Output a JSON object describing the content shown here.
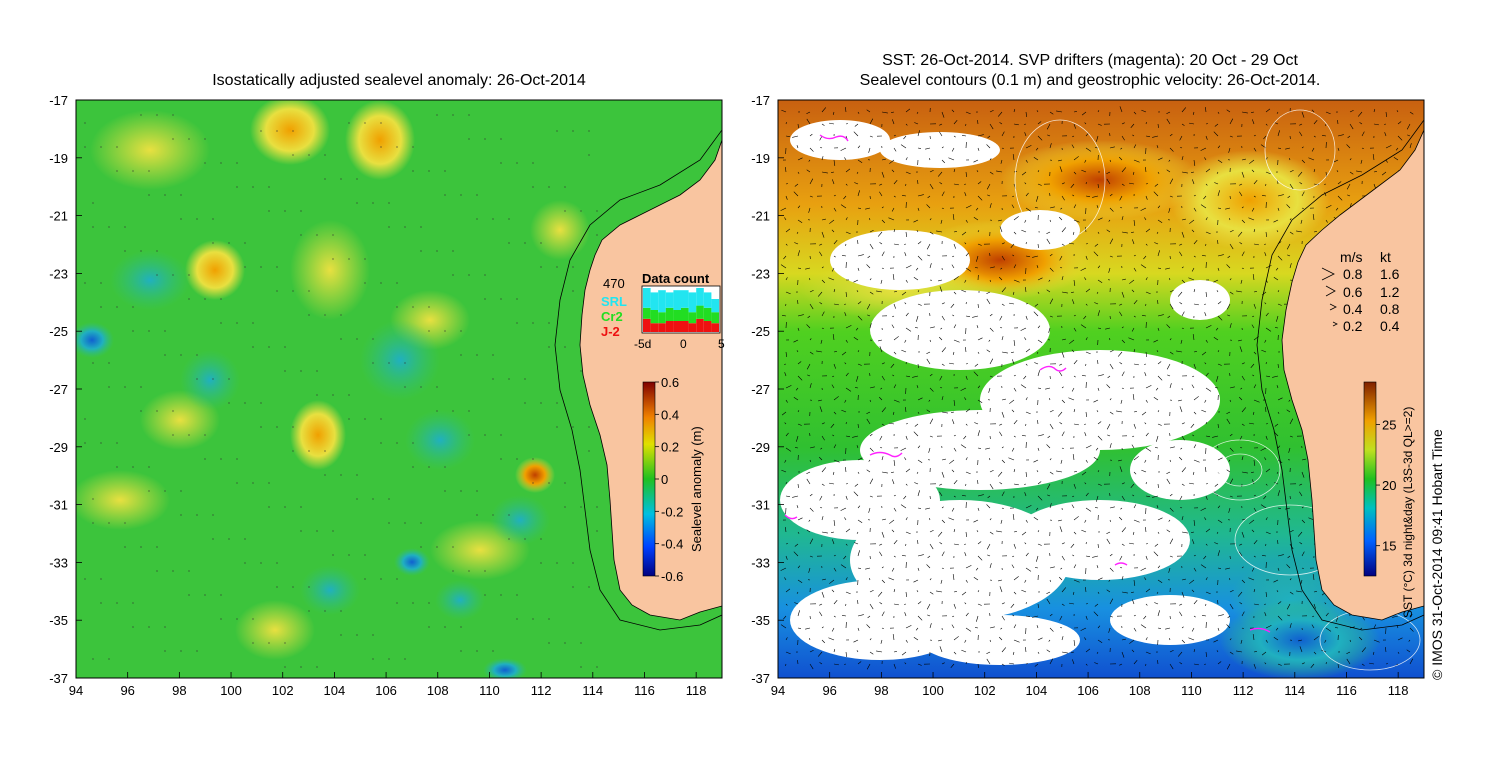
{
  "left_panel": {
    "title": "Isostatically adjusted sealevel anomaly: 26-Oct-2014",
    "x_ticks": [
      "94",
      "96",
      "98",
      "100",
      "102",
      "104",
      "106",
      "108",
      "110",
      "112",
      "114",
      "116",
      "118"
    ],
    "y_ticks": [
      "-17",
      "-19",
      "-21",
      "-23",
      "-25",
      "-27",
      "-29",
      "-31",
      "-33",
      "-35",
      "-37"
    ],
    "lon_range": [
      94,
      119
    ],
    "lat_range": [
      -37,
      -17
    ],
    "data_count": {
      "count": "470",
      "title": "Data count",
      "legend": [
        {
          "name": "SRL",
          "color": "#22e5f0"
        },
        {
          "name": "Cr2",
          "color": "#22dd22"
        },
        {
          "name": "J-2",
          "color": "#ee1111"
        }
      ],
      "axis_ticks": [
        "-5d",
        "0",
        "5"
      ],
      "bars": [
        {
          "srl": 0.45,
          "cr2": 0.25,
          "j2": 0.3
        },
        {
          "srl": 0.4,
          "cr2": 0.3,
          "j2": 0.2
        },
        {
          "srl": 0.5,
          "cr2": 0.25,
          "j2": 0.2
        },
        {
          "srl": 0.35,
          "cr2": 0.3,
          "j2": 0.25
        },
        {
          "srl": 0.45,
          "cr2": 0.25,
          "j2": 0.25
        },
        {
          "srl": 0.4,
          "cr2": 0.3,
          "j2": 0.25
        },
        {
          "srl": 0.45,
          "cr2": 0.25,
          "j2": 0.2
        },
        {
          "srl": 0.4,
          "cr2": 0.3,
          "j2": 0.3
        },
        {
          "srl": 0.35,
          "cr2": 0.3,
          "j2": 0.25
        },
        {
          "srl": 0.3,
          "cr2": 0.25,
          "j2": 0.2
        }
      ]
    },
    "colorbar": {
      "label": "Sealevel anomaly (m)",
      "ticks": [
        "0.6",
        "0.4",
        "0.2",
        "0",
        "-0.2",
        "-0.4",
        "-0.6"
      ],
      "range": [
        -0.6,
        0.6
      ]
    }
  },
  "right_panel": {
    "title_line1": "SST: 26-Oct-2014. SVP drifters (magenta): 20 Oct - 29 Oct",
    "title_line2": "Sealevel contours (0.1 m) and geostrophic velocity: 26-Oct-2014.",
    "x_ticks": [
      "94",
      "96",
      "98",
      "100",
      "102",
      "104",
      "106",
      "108",
      "110",
      "112",
      "114",
      "116",
      "118"
    ],
    "y_ticks": [
      "-17",
      "-19",
      "-21",
      "-23",
      "-25",
      "-27",
      "-29",
      "-31",
      "-33",
      "-35",
      "-37"
    ],
    "velocity_legend": {
      "header_ms": "m/s",
      "header_kt": "kt",
      "rows": [
        {
          "ms": "0.8",
          "kt": "1.6"
        },
        {
          "ms": "0.6",
          "kt": "1.2"
        },
        {
          "ms": "0.4",
          "kt": "0.8"
        },
        {
          "ms": "0.2",
          "kt": "0.4"
        }
      ]
    },
    "colorbar": {
      "label": "SST (°C) 3d night&day (L3S-3d QL>=2)",
      "ticks": [
        "25",
        "20",
        "15"
      ],
      "range": [
        12.5,
        28.5
      ]
    }
  },
  "credit": "© IMOS 31-Oct-2014 09:41 Hobart Time",
  "colors": {
    "land": "#f9c5a0",
    "sea_green": "#33cc33",
    "warm": "#d06010",
    "magenta": "#ff22ff"
  }
}
